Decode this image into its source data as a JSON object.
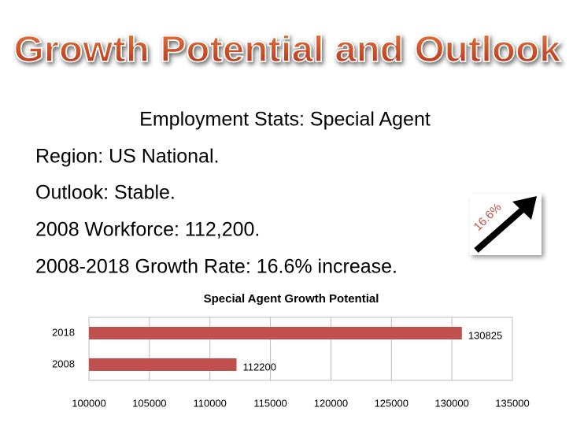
{
  "slide": {
    "title": "Growth Potential and Outlook",
    "heading": "Employment Stats: Special Agent",
    "lines": [
      "Region: US National.",
      "Outlook: Stable.",
      "2008 Workforce: 112,200.",
      "2008-2018 Growth Rate: 16.6% increase."
    ],
    "arrow_label": "16.6%"
  },
  "chart_data": {
    "type": "hbar",
    "title": "Special Agent Growth Potential",
    "categories": [
      "2018",
      "2008"
    ],
    "values": [
      130825,
      112200
    ],
    "color": "#c0504d",
    "xlim": [
      100000,
      135000
    ],
    "xticks": [
      100000,
      105000,
      110000,
      115000,
      120000,
      125000,
      130000,
      135000
    ],
    "grid": true
  }
}
